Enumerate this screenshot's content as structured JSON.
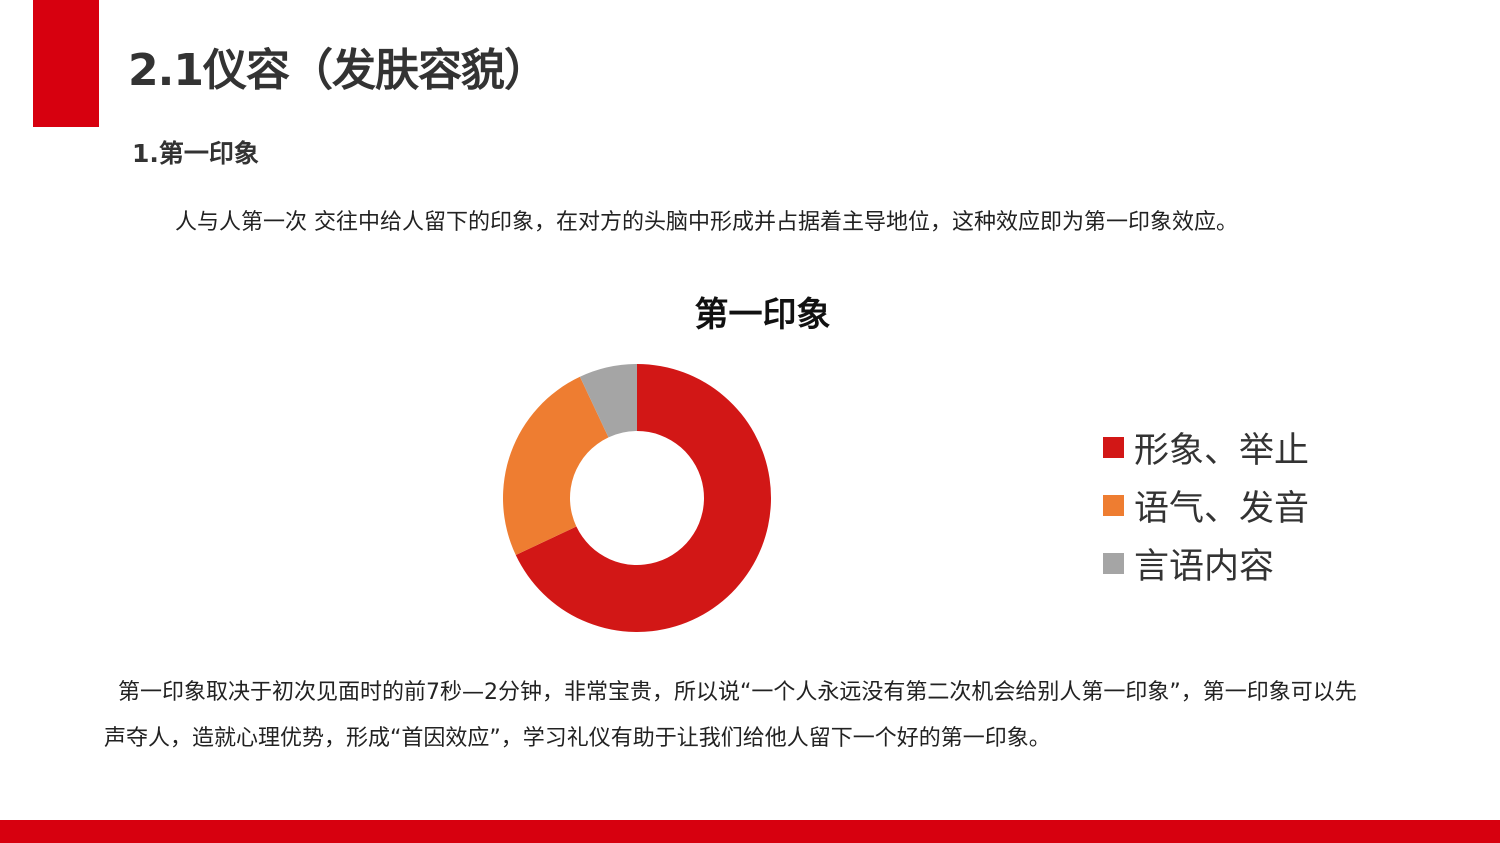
{
  "header": {
    "title": "2.1仪容（发肤容貌）",
    "subtitle": "1.第一印象"
  },
  "intro": "人与人第一次 交往中给人留下的印象，在对方的头脑中形成并占据着主导地位，这种效应即为第一印象效应。",
  "chart_data": {
    "type": "pie",
    "variant": "donut",
    "title": "第一印象",
    "categories": [
      "形象、举止",
      "语气、发音",
      "言语内容"
    ],
    "values": [
      68,
      25,
      7
    ],
    "colors": [
      "#d21716",
      "#ee7d31",
      "#a5a5a5"
    ],
    "legend": "right"
  },
  "paragraph": "第一印象取决于初次见面时的前7秒—2分钟，非常宝贵，所以说“一个人永远没有第二次机会给别人第一印象”，第一印象可以先声夺人，造就心理优势，形成“首因效应”，学习礼仪有助于让我们给他人留下一个好的第一印象。",
  "colors": {
    "accent": "#d7000f"
  }
}
